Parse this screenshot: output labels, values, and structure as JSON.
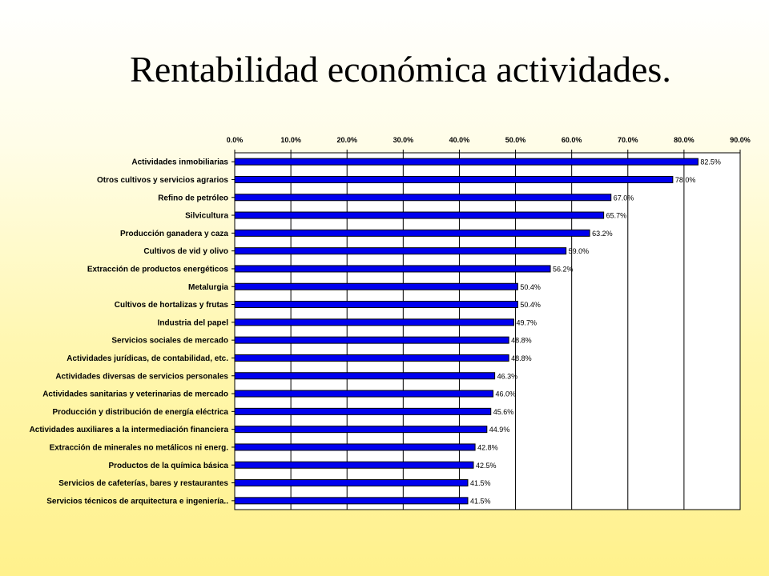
{
  "slide": {
    "title": "Rentabilidad económica actividades."
  },
  "colors": {
    "bar": "#0000ee",
    "bar_outline": "#000000",
    "plot_background": "#ffffff",
    "grid": "#000000"
  },
  "chart_data": {
    "type": "bar",
    "orientation": "horizontal",
    "title": "",
    "xlabel": "",
    "ylabel": "",
    "xlim": [
      0,
      90
    ],
    "x_ticks": [
      "0.0%",
      "10.0%",
      "20.0%",
      "30.0%",
      "40.0%",
      "50.0%",
      "60.0%",
      "70.0%",
      "80.0%",
      "90.0%"
    ],
    "x_axis_position": "top",
    "grid": true,
    "legend": "none",
    "categories": [
      "Actividades inmobiliarias",
      "Otros cultivos y servicios agrarios",
      "Refino de petróleo",
      "Silvicultura",
      "Producción ganadera y caza",
      "Cultivos de vid y olivo",
      "Extracción de productos energéticos",
      "Metalurgia",
      "Cultivos de hortalizas y frutas",
      "Industria del papel",
      "Servicios sociales de mercado",
      "Actividades jurídicas, de contabilidad, etc.",
      "Actividades diversas de servicios personales",
      "Actividades sanitarias y veterinarias de mercado",
      "Producción y distribución de energía eléctrica",
      "Actividades auxiliares a la intermediación financiera",
      "Extracción de minerales no metálicos ni energ.",
      "Productos de la química básica",
      "Servicios de cafeterías, bares y restaurantes",
      "Servicios técnicos de arquitectura e ingeniería.."
    ],
    "values": [
      82.5,
      78.0,
      67.0,
      65.7,
      63.2,
      59.0,
      56.2,
      50.4,
      50.4,
      49.7,
      48.8,
      48.8,
      46.3,
      46.0,
      45.6,
      44.9,
      42.8,
      42.5,
      41.5,
      41.5
    ],
    "value_labels": [
      "82.5%",
      "78.0%",
      "67.0%",
      "65.7%",
      "63.2%",
      "59.0%",
      "56.2%",
      "50.4%",
      "50.4%",
      "49.7%",
      "48.8%",
      "48.8%",
      "46.3%",
      "46.0%",
      "45.6%",
      "44.9%",
      "42.8%",
      "42.5%",
      "41.5%",
      "41.5%"
    ]
  }
}
